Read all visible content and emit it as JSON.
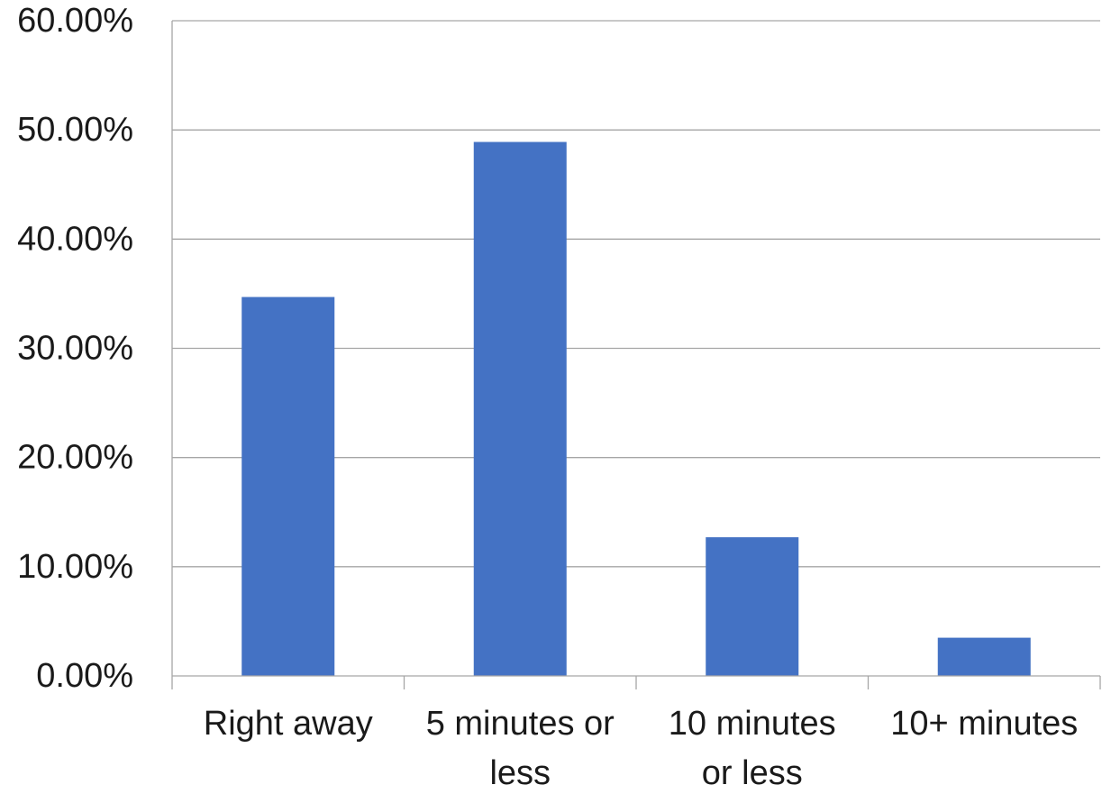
{
  "chart_data": {
    "type": "bar",
    "categories": [
      [
        "Right away"
      ],
      [
        "5 minutes or",
        "less"
      ],
      [
        "10 minutes",
        "or less"
      ],
      [
        "10+ minutes"
      ]
    ],
    "values": [
      34.7,
      48.9,
      12.7,
      3.5
    ],
    "ylim": [
      0,
      60
    ],
    "yticks": [
      0,
      10,
      20,
      30,
      40,
      50,
      60
    ],
    "ytick_labels": [
      "0.00%",
      "10.00%",
      "20.00%",
      "30.00%",
      "40.00%",
      "50.00%",
      "60.00%"
    ],
    "grid": true,
    "legend": "none",
    "bar_color": "#4472C4",
    "grid_color": "#a6a6a6",
    "title": "",
    "xlabel": "",
    "ylabel": ""
  }
}
